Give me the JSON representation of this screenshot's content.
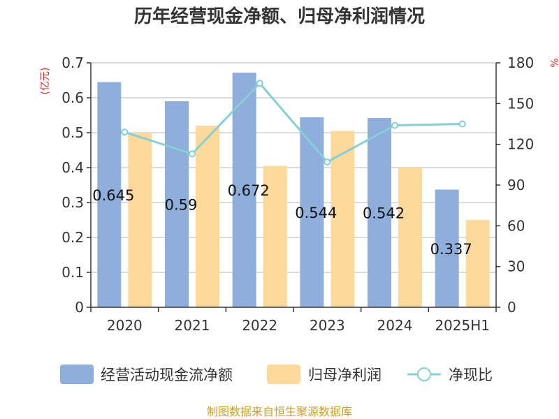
{
  "chart_data": {
    "type": "bar",
    "title": "历年经营现金净额、归母净利润情况",
    "categories": [
      "2020",
      "2021",
      "2022",
      "2023",
      "2024",
      "2025H1"
    ],
    "y_left": {
      "label": "(亿元)",
      "lim": [
        0,
        0.7
      ],
      "ticks": [
        "0",
        "0.1",
        "0.2",
        "0.3",
        "0.4",
        "0.5",
        "0.6",
        "0.7"
      ]
    },
    "y_right": {
      "label": "%",
      "lim": [
        0,
        180
      ],
      "ticks": [
        "0",
        "30",
        "60",
        "90",
        "120",
        "150",
        "180"
      ]
    },
    "series": [
      {
        "name": "经营活动现金流净额",
        "type": "bar",
        "axis": "left",
        "color": "#8eaedc",
        "values": [
          0.645,
          0.59,
          0.672,
          0.544,
          0.542,
          0.337
        ],
        "labels": [
          "0.645",
          "0.59",
          "0.672",
          "0.544",
          "0.542",
          "0.337"
        ]
      },
      {
        "name": "归母净利润",
        "type": "bar",
        "axis": "left",
        "color": "#fdd99b",
        "values": [
          0.5,
          0.52,
          0.405,
          0.505,
          0.4,
          0.25
        ]
      },
      {
        "name": "净现比",
        "type": "line",
        "axis": "right",
        "color": "#86cfd4",
        "values": [
          129,
          113,
          165,
          107,
          134,
          135
        ]
      }
    ],
    "grid": true,
    "legend": "bottom",
    "source": "制图数据来自恒生聚源数据库"
  }
}
